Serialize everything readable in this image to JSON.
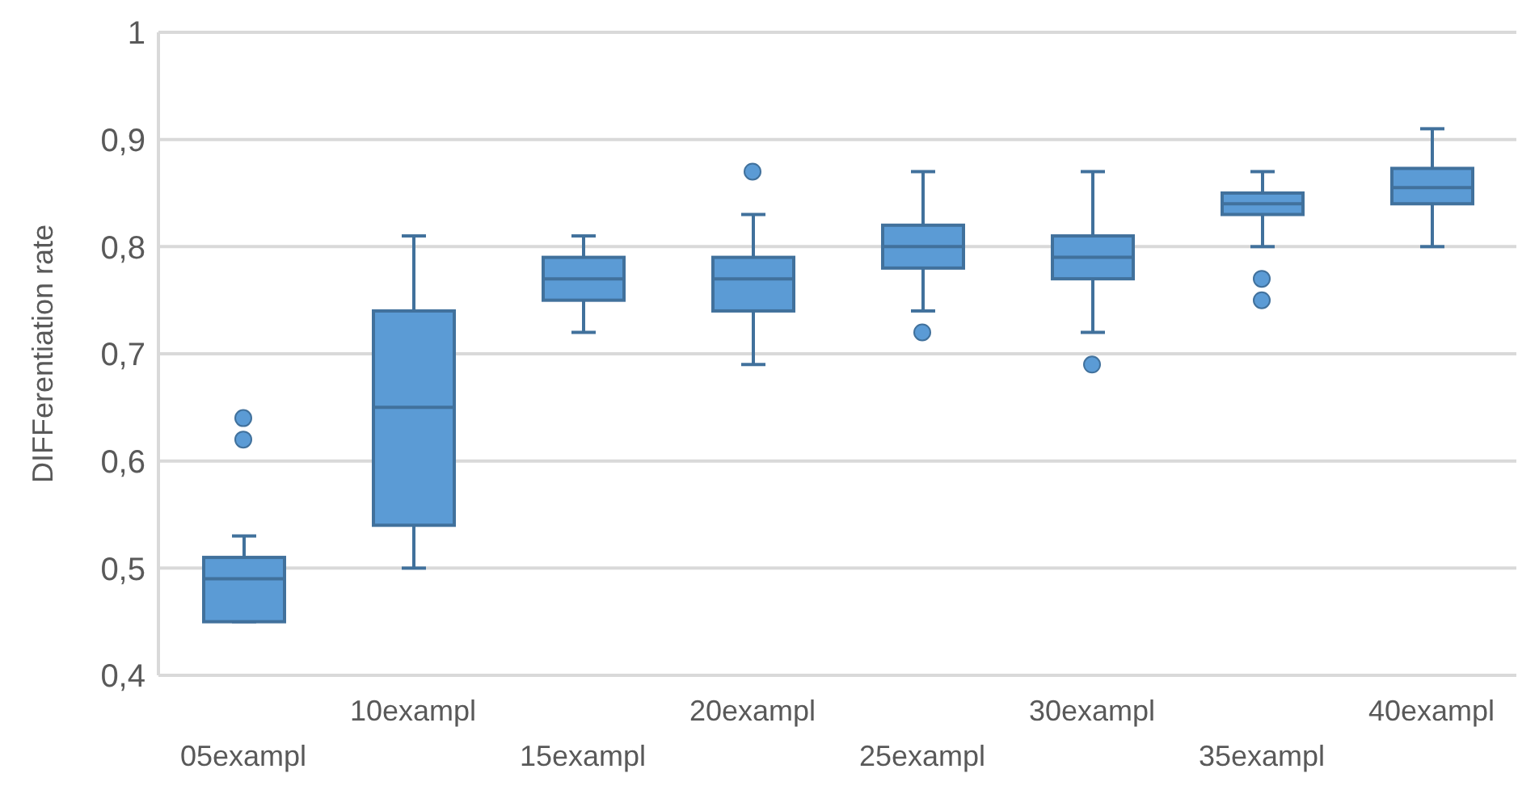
{
  "chart_data": {
    "type": "box",
    "ylabel": "DIFFerentiation rate",
    "categories": [
      "05exampl",
      "10exampl",
      "15exampl",
      "20exampl",
      "25exampl",
      "30exampl",
      "35exampl",
      "40exampl"
    ],
    "ylim": [
      0.4,
      1
    ],
    "yticks": [
      {
        "value": 0.4,
        "label": "0,4"
      },
      {
        "value": 0.5,
        "label": "0,5"
      },
      {
        "value": 0.6,
        "label": "0,6"
      },
      {
        "value": 0.7,
        "label": "0,7"
      },
      {
        "value": 0.8,
        "label": "0,8"
      },
      {
        "value": 0.9,
        "label": "0,9"
      },
      {
        "value": 1,
        "label": "1"
      }
    ],
    "grid": "y",
    "series": [
      {
        "color": "#5b9bd5",
        "boxes": [
          {
            "low": 0.45,
            "q1": 0.45,
            "median": 0.49,
            "q3": 0.51,
            "high": 0.53,
            "outliers": [
              0.62,
              0.64
            ]
          },
          {
            "low": 0.5,
            "q1": 0.54,
            "median": 0.65,
            "q3": 0.74,
            "high": 0.81
          },
          {
            "low": 0.72,
            "q1": 0.75,
            "median": 0.77,
            "q3": 0.79,
            "high": 0.81
          },
          {
            "low": 0.69,
            "q1": 0.74,
            "median": 0.77,
            "q3": 0.79,
            "high": 0.83,
            "outliers": [
              0.87
            ]
          },
          {
            "low": 0.74,
            "q1": 0.78,
            "median": 0.8,
            "q3": 0.82,
            "high": 0.87,
            "outliers": [
              0.72
            ]
          },
          {
            "low": 0.72,
            "q1": 0.77,
            "median": 0.79,
            "q3": 0.81,
            "high": 0.87,
            "outliers": [
              0.69
            ]
          },
          {
            "low": 0.8,
            "q1": 0.83,
            "median": 0.84,
            "q3": 0.85,
            "high": 0.87,
            "outliers": [
              0.77,
              0.75
            ]
          },
          {
            "low": 0.8,
            "q1": 0.84,
            "median": 0.855,
            "q3": 0.873,
            "high": 0.91
          }
        ]
      }
    ]
  }
}
